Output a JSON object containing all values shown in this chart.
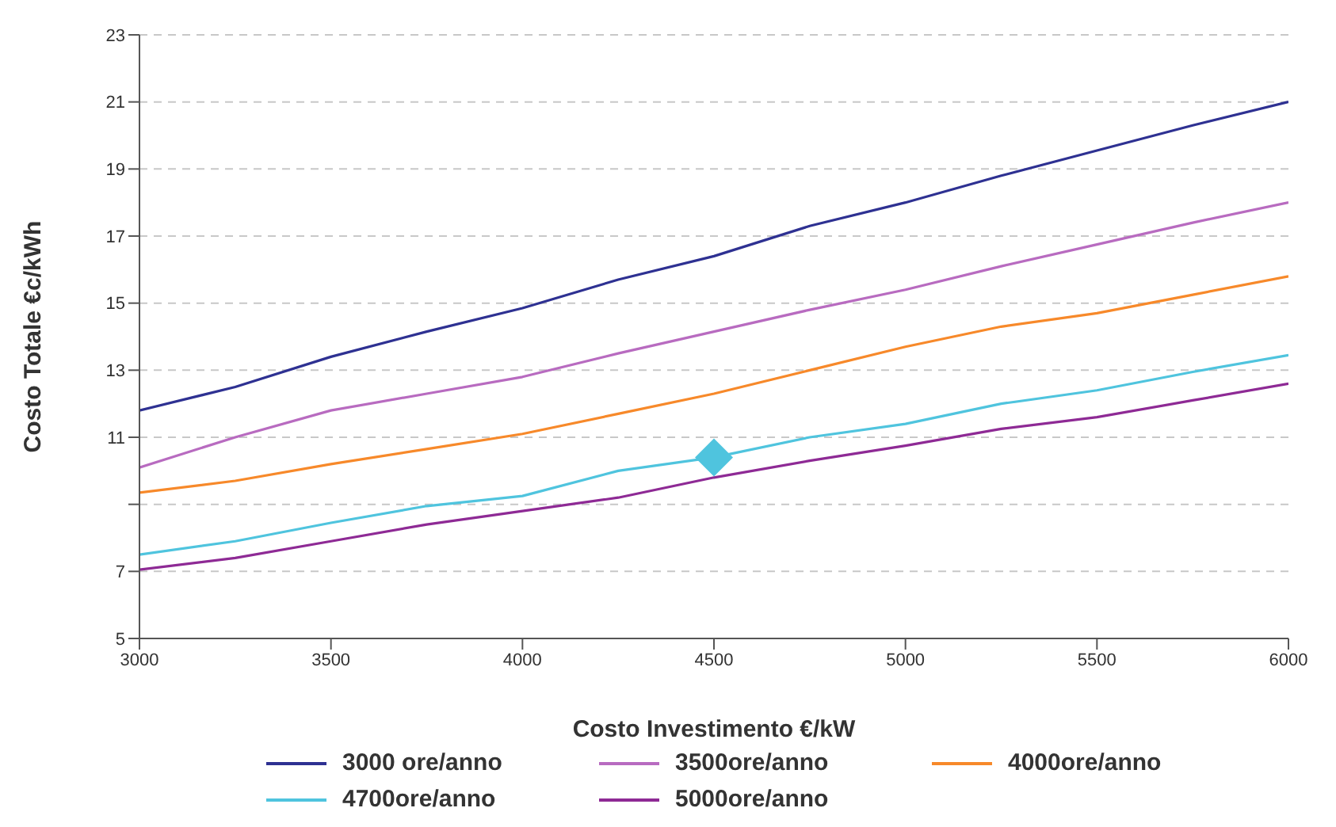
{
  "chart_data": {
    "type": "line",
    "xlabel": "Costo Investimento €/kW",
    "ylabel": "Costo Totale €c/kWh",
    "x": [
      3000,
      3250,
      3500,
      3750,
      4000,
      4250,
      4500,
      4750,
      5000,
      5250,
      5500,
      5750,
      6000
    ],
    "series": [
      {
        "name": "3000 ore/anno",
        "color": "#2e3192",
        "values": [
          11.8,
          12.5,
          13.4,
          14.15,
          14.85,
          15.7,
          16.4,
          17.3,
          18.0,
          18.8,
          19.55,
          20.3,
          21.0
        ]
      },
      {
        "name": "3500ore/anno",
        "color": "#b86bc0",
        "values": [
          10.1,
          11.0,
          11.8,
          12.3,
          12.8,
          13.5,
          14.15,
          14.8,
          15.4,
          16.1,
          16.75,
          17.4,
          18.0
        ]
      },
      {
        "name": "4000ore/anno",
        "color": "#f7892a",
        "values": [
          9.35,
          9.7,
          10.2,
          10.65,
          11.1,
          11.7,
          12.3,
          13.0,
          13.7,
          14.3,
          14.7,
          15.25,
          15.8
        ]
      },
      {
        "name": "4700ore/anno",
        "color": "#4fc4de",
        "values": [
          7.5,
          7.9,
          8.45,
          8.95,
          9.25,
          10.0,
          10.4,
          11.0,
          11.4,
          12.0,
          12.4,
          12.95,
          13.45
        ]
      },
      {
        "name": "5000ore/anno",
        "color": "#8e2a95",
        "values": [
          7.05,
          7.4,
          7.9,
          8.4,
          8.8,
          9.2,
          9.8,
          10.3,
          10.75,
          11.25,
          11.6,
          12.1,
          12.6
        ]
      },
      {
        "type": "scatter",
        "color": "#4fc4de",
        "marker": "diamond",
        "x": [
          4500
        ],
        "values": [
          10.4
        ]
      }
    ],
    "xlim": [
      3000,
      6000
    ],
    "xticks": [
      3000,
      3500,
      4000,
      4500,
      5000,
      5500,
      6000
    ],
    "ylim": [
      5,
      23
    ],
    "yticks": [
      5,
      7,
      {
        "value": 9,
        "label": null
      },
      11,
      13,
      15,
      17,
      19,
      21,
      23
    ],
    "grid": "y",
    "legend": "bottom",
    "marker": "none",
    "line_style": "solid"
  }
}
